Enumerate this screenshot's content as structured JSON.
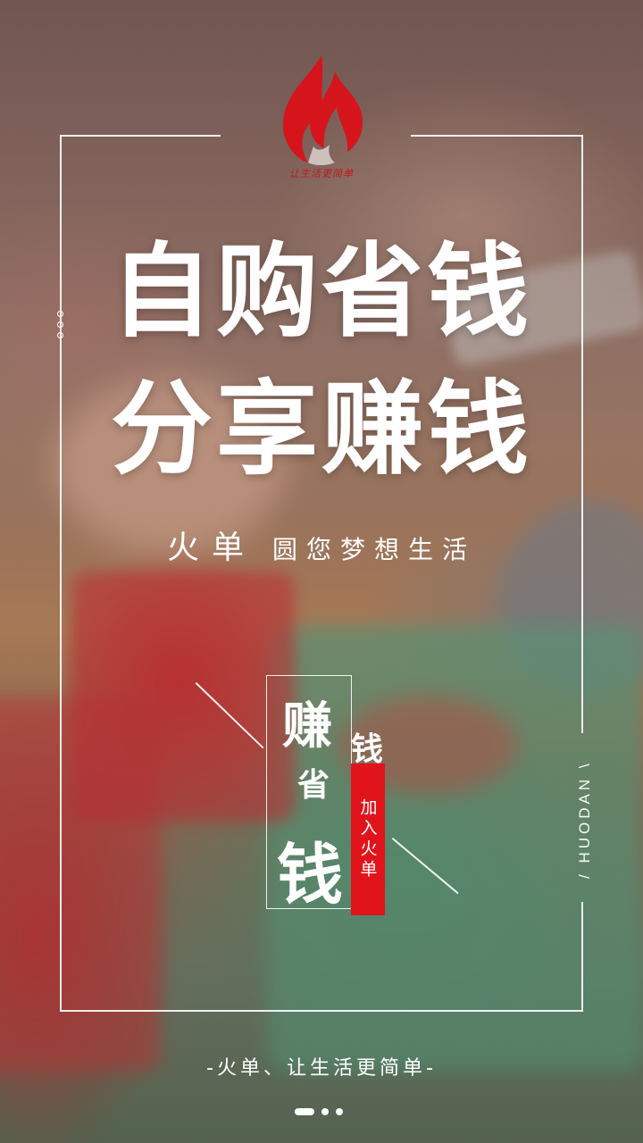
{
  "logo": {
    "name": "flame-logo",
    "tagline": "让生活更简单",
    "color": "#c0191f"
  },
  "headline": {
    "line1": "自购省钱",
    "line2": "分享赚钱"
  },
  "tagline": {
    "brand": "火单",
    "slogan": "圆您梦想生活"
  },
  "badge": {
    "char_zhuan": "赚",
    "char_qian_small": "钱",
    "char_sheng": "省",
    "char_qian_large": "钱",
    "join_label": "加入火单",
    "accent": "#e1141c"
  },
  "side_label": "/ HUODAN \\",
  "footer": {
    "slogan": "-火单、让生活更简单-"
  },
  "pager": {
    "count": 3,
    "active_index": 0
  }
}
